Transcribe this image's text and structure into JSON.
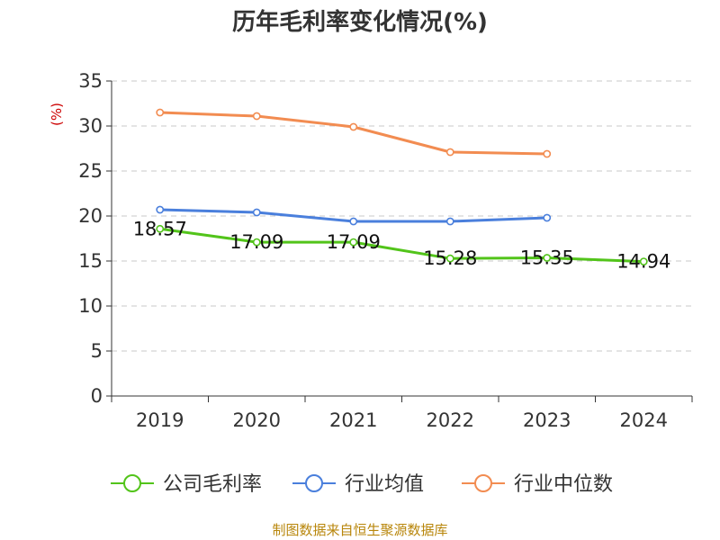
{
  "chart_data": {
    "type": "line",
    "title": "历年毛利率变化情况(%)",
    "ylabel": "(%)",
    "xlabel": "",
    "categories": [
      "2019",
      "2020",
      "2021",
      "2022",
      "2023",
      "2024"
    ],
    "ylim": [
      0,
      35
    ],
    "yticks": [
      0,
      5,
      10,
      15,
      20,
      25,
      30,
      35
    ],
    "grid": true,
    "legend_position": "bottom",
    "series": [
      {
        "name": "公司毛利率",
        "color": "#52c41a",
        "values": [
          18.57,
          17.09,
          17.09,
          15.28,
          15.35,
          14.94
        ],
        "labels": [
          "18.57",
          "17.09",
          "17.09",
          "15.28",
          "15.35",
          "14.94"
        ]
      },
      {
        "name": "行业均值",
        "color": "#4a7fdc",
        "values": [
          20.7,
          20.4,
          19.4,
          19.4,
          19.8,
          null
        ]
      },
      {
        "name": "行业中位数",
        "color": "#f28c51",
        "values": [
          31.5,
          31.1,
          29.9,
          27.1,
          26.9,
          null
        ]
      }
    ]
  },
  "source": "制图数据来自恒生聚源数据库"
}
